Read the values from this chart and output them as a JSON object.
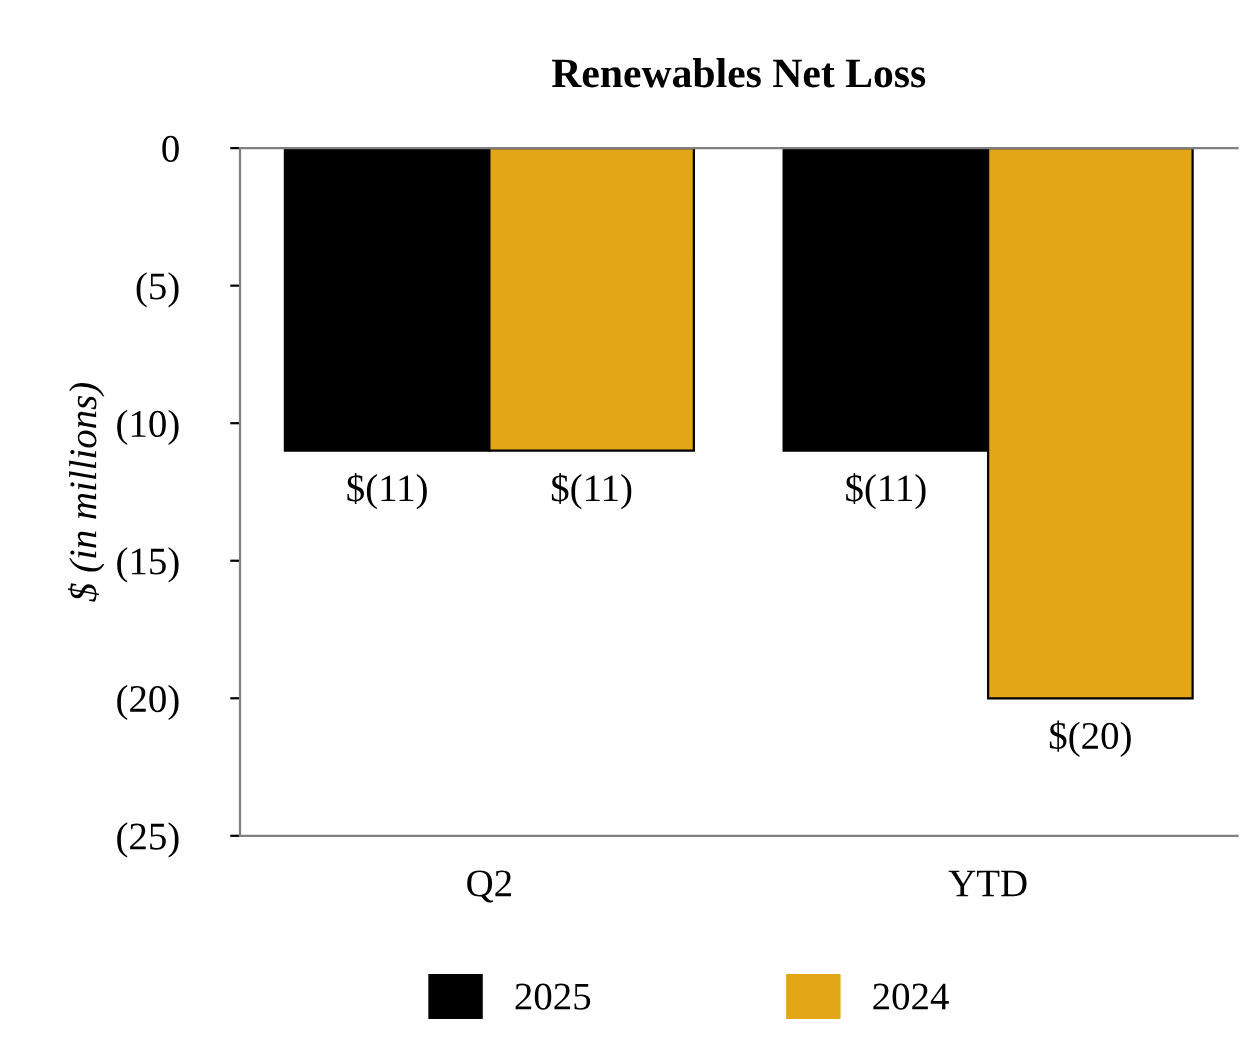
{
  "chart_data": {
    "type": "bar",
    "title": "Renewables Net Loss",
    "ylabel": "$ (in millions)",
    "categories": [
      "Q2",
      "YTD"
    ],
    "series": [
      {
        "name": "2025",
        "color": "#000000",
        "values": [
          -11,
          -11
        ],
        "value_labels": [
          "$(11)",
          "$(11)"
        ]
      },
      {
        "name": "2024",
        "color": "#e3a616",
        "values": [
          -11,
          -20
        ],
        "value_labels": [
          "$(11)",
          "$(20)"
        ]
      }
    ],
    "ylim": [
      -25,
      0
    ],
    "yticks": [
      {
        "value": -25,
        "label": "(25)"
      },
      {
        "value": -20,
        "label": "(20)"
      },
      {
        "value": -15,
        "label": "(15)"
      },
      {
        "value": -10,
        "label": "(10)"
      },
      {
        "value": -5,
        "label": "(5)"
      },
      0
    ],
    "grid": false,
    "legend": "bottom"
  }
}
